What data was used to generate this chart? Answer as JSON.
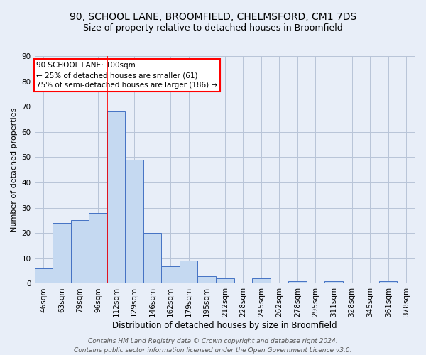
{
  "title1": "90, SCHOOL LANE, BROOMFIELD, CHELMSFORD, CM1 7DS",
  "title2": "Size of property relative to detached houses in Broomfield",
  "xlabel": "Distribution of detached houses by size in Broomfield",
  "ylabel": "Number of detached properties",
  "categories": [
    "46sqm",
    "63sqm",
    "79sqm",
    "96sqm",
    "112sqm",
    "129sqm",
    "146sqm",
    "162sqm",
    "179sqm",
    "195sqm",
    "212sqm",
    "228sqm",
    "245sqm",
    "262sqm",
    "278sqm",
    "295sqm",
    "311sqm",
    "328sqm",
    "345sqm",
    "361sqm",
    "378sqm"
  ],
  "values": [
    6,
    24,
    25,
    28,
    68,
    49,
    20,
    7,
    9,
    3,
    2,
    0,
    2,
    0,
    1,
    0,
    1,
    0,
    0,
    1,
    0
  ],
  "bar_color": "#c5d9f1",
  "bar_edge_color": "#4472c4",
  "bar_linewidth": 0.7,
  "grid_color": "#b8c4d8",
  "bg_color": "#e8eef8",
  "annotation_box_text": "90 SCHOOL LANE: 100sqm\n← 25% of detached houses are smaller (61)\n75% of semi-detached houses are larger (186) →",
  "annotation_box_color": "white",
  "annotation_box_edge_color": "red",
  "vline_x": 3.5,
  "vline_color": "red",
  "vline_linewidth": 1.2,
  "ylim": [
    0,
    90
  ],
  "yticks": [
    0,
    10,
    20,
    30,
    40,
    50,
    60,
    70,
    80,
    90
  ],
  "footnote": "Contains HM Land Registry data © Crown copyright and database right 2024.\nContains public sector information licensed under the Open Government Licence v3.0.",
  "title1_fontsize": 10,
  "title2_fontsize": 9,
  "xlabel_fontsize": 8.5,
  "ylabel_fontsize": 8,
  "tick_fontsize": 7.5,
  "annotation_fontsize": 7.5,
  "footnote_fontsize": 6.5
}
